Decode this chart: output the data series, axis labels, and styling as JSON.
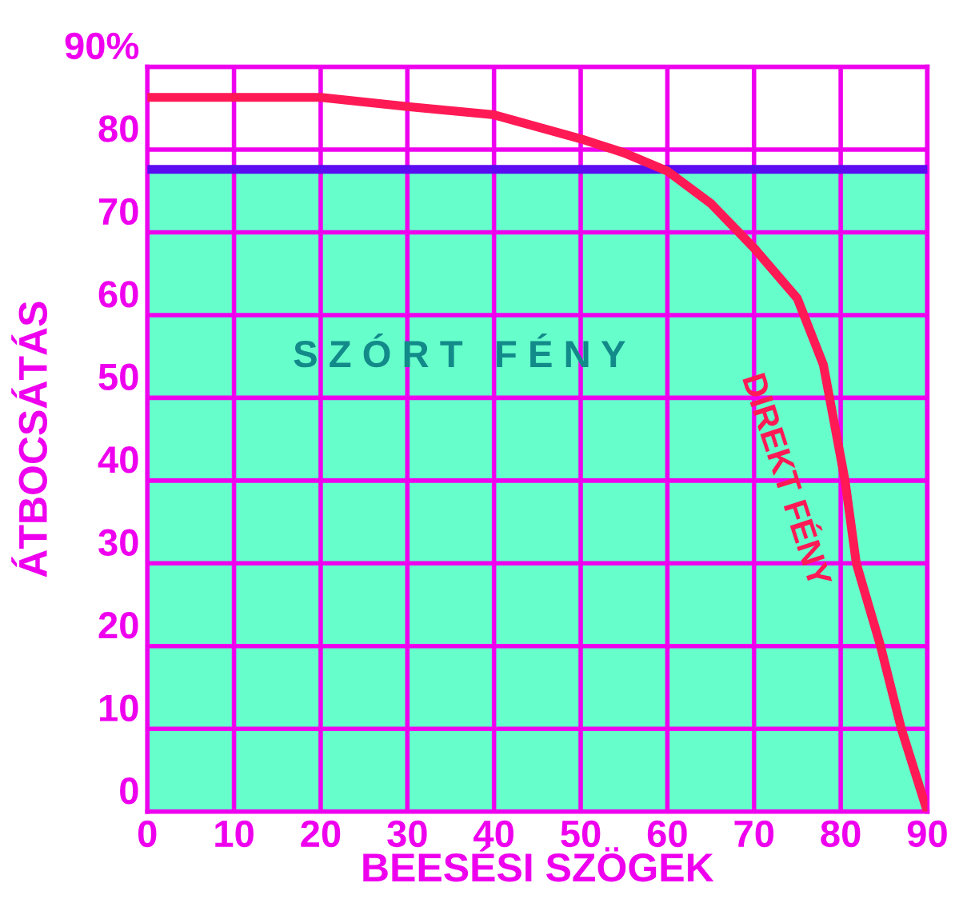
{
  "chart_data": {
    "type": "line",
    "xlabel": "BEESÉSI SZÖGEK",
    "ylabel": "ÁTBOCSÁTÁS",
    "series": [
      {
        "name": "DIREKT FÉNY",
        "color": "#ff1a55",
        "x": [
          0,
          10,
          20,
          30,
          40,
          50,
          55,
          60,
          65,
          70,
          75,
          78,
          80.5,
          81.8,
          84.6,
          87,
          90
        ],
        "values": [
          86.3,
          86.3,
          86.3,
          85.2,
          84.2,
          81.3,
          79.6,
          77.4,
          73.5,
          68.1,
          62,
          54,
          40,
          30,
          20,
          10,
          0
        ]
      }
    ],
    "xlim": [
      0,
      90
    ],
    "ylim": [
      0,
      90
    ],
    "xticks": [
      0,
      10,
      20,
      30,
      40,
      50,
      60,
      70,
      80,
      90
    ],
    "yticks": [
      0,
      10,
      20,
      30,
      40,
      50,
      60,
      70,
      80,
      {
        "value": 90,
        "label": "90%"
      }
    ],
    "ref_lines": [
      {
        "axis": "y",
        "value": 77.6,
        "color": "#5b0cf0"
      }
    ],
    "bands": [
      {
        "axis": "y",
        "from": 0,
        "to": 77.6,
        "color": "#66ffcc",
        "label": "S Z Ó R T   F É N Y"
      }
    ],
    "grid": true,
    "legend": false,
    "marker": "none",
    "line_style": "solid"
  }
}
